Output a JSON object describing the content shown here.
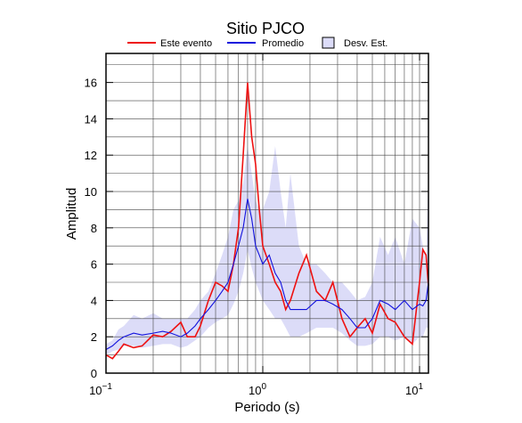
{
  "chart_data": {
    "type": "line",
    "title": "Sitio PJCO",
    "xlabel": "Periodo (s)",
    "ylabel": "Amplitud",
    "xscale": "log",
    "xlim": [
      0.1,
      11.4
    ],
    "ylim": [
      0,
      17.6
    ],
    "xticks": [
      {
        "value": 0.1,
        "label": "10",
        "exponent": "−1"
      },
      {
        "value": 1,
        "label": "10",
        "exponent": "0"
      },
      {
        "value": 10,
        "label": "10",
        "exponent": "1"
      }
    ],
    "yticks": [
      0,
      2,
      4,
      6,
      8,
      10,
      12,
      14,
      16
    ],
    "xgrid": [
      0.2,
      0.3,
      0.4,
      0.5,
      0.6,
      0.7,
      0.8,
      0.9,
      2,
      3,
      4,
      5,
      6,
      7,
      8,
      9
    ],
    "ygrid": [
      1,
      3,
      5,
      7,
      9,
      11,
      13,
      15,
      17
    ],
    "x": [
      0.1,
      0.11,
      0.12,
      0.13,
      0.15,
      0.17,
      0.2,
      0.23,
      0.26,
      0.3,
      0.33,
      0.37,
      0.4,
      0.45,
      0.5,
      0.55,
      0.6,
      0.65,
      0.7,
      0.75,
      0.8,
      0.85,
      0.9,
      0.95,
      1.0,
      1.1,
      1.2,
      1.3,
      1.4,
      1.5,
      1.7,
      1.9,
      2.2,
      2.5,
      2.8,
      3.2,
      3.6,
      4,
      4.5,
      5,
      5.6,
      6.3,
      7,
      8,
      9,
      10,
      10.5,
      11,
      11.4
    ],
    "band": {
      "name": "Desv. Est.",
      "color": "#dcdcf8",
      "upper": [
        1.6,
        1.8,
        2.4,
        2.6,
        3.2,
        3.0,
        3.3,
        3.0,
        3.0,
        3.0,
        3.0,
        3.5,
        4.0,
        4.5,
        5.5,
        6.5,
        7.5,
        9.0,
        9.5,
        10.5,
        12.5,
        11.0,
        9.5,
        9.0,
        9.0,
        10.0,
        12.5,
        10.0,
        8.0,
        11.0,
        7.0,
        6.0,
        6.0,
        5.5,
        5.0,
        5.0,
        4.5,
        4.0,
        4.2,
        5.0,
        7.5,
        6.5,
        7.5,
        6.0,
        8.5,
        8.0,
        7.0,
        6.0,
        11.0
      ],
      "lower": [
        1.0,
        1.2,
        1.3,
        1.5,
        1.5,
        1.4,
        1.5,
        1.6,
        1.6,
        1.4,
        1.5,
        1.8,
        2.0,
        2.5,
        2.8,
        3.0,
        3.2,
        3.8,
        4.5,
        5.5,
        6.8,
        5.8,
        5.0,
        4.5,
        4.0,
        3.5,
        3.0,
        3.0,
        2.5,
        2.0,
        2.0,
        2.2,
        2.5,
        2.5,
        2.5,
        2.2,
        1.8,
        1.5,
        1.5,
        1.6,
        2.0,
        2.0,
        1.8,
        2.0,
        1.6,
        2.0,
        2.0,
        2.5,
        2.5
      ]
    },
    "series": [
      {
        "name": "Este evento",
        "color": "#ee1111",
        "values": [
          1.0,
          0.8,
          1.2,
          1.6,
          1.4,
          1.5,
          2.1,
          2.0,
          2.3,
          2.8,
          2.0,
          2.0,
          2.6,
          4.0,
          5.0,
          4.8,
          4.5,
          6.0,
          8.0,
          12.0,
          16.0,
          13.0,
          11.5,
          9.0,
          7.0,
          6.0,
          5.0,
          4.5,
          3.5,
          4.0,
          5.5,
          6.5,
          4.5,
          4.0,
          5.0,
          3.0,
          2.0,
          2.5,
          3.0,
          2.2,
          3.8,
          3.0,
          2.8,
          2.0,
          1.6,
          5.0,
          6.8,
          6.5,
          4.8
        ]
      },
      {
        "name": "Promedio",
        "color": "#1111dd",
        "values": [
          1.3,
          1.5,
          1.8,
          2.0,
          2.2,
          2.1,
          2.2,
          2.3,
          2.2,
          2.0,
          2.2,
          2.6,
          3.0,
          3.5,
          4.0,
          4.5,
          5.0,
          6.0,
          7.0,
          8.0,
          9.6,
          8.5,
          7.0,
          6.5,
          6.0,
          6.5,
          5.5,
          5.0,
          4.0,
          3.5,
          3.5,
          3.5,
          4.0,
          4.0,
          3.8,
          3.5,
          3.0,
          2.5,
          2.5,
          3.0,
          4.0,
          3.8,
          3.5,
          4.0,
          3.5,
          3.8,
          3.7,
          4.0,
          5.0
        ]
      }
    ]
  }
}
